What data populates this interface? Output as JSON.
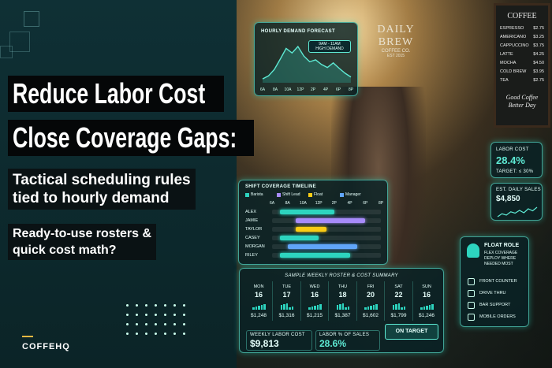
{
  "headline": {
    "line1": "Reduce Labor Cost",
    "line2": "Close Coverage Gaps:"
  },
  "subhead": [
    "Tactical scheduling rules",
    "tied to hourly demand"
  ],
  "question": [
    "Ready-to-use rosters &",
    "quick cost math?"
  ],
  "brand": "COFFEHQ",
  "store_sign": {
    "name": "DAILY BREW",
    "sub": "COFFEE CO.",
    "est": "EST 2015"
  },
  "menu_board": {
    "title": "COFFEE",
    "items": [
      [
        "ESPRESSO",
        "$2.75"
      ],
      [
        "AMERICANO",
        "$3.25"
      ],
      [
        "CAPPUCCINO",
        "$3.75"
      ],
      [
        "LATTE",
        "$4.25"
      ],
      [
        "MOCHA",
        "$4.50"
      ],
      [
        "COLD BREW",
        "$3.95"
      ],
      [
        "TEA",
        "$2.75"
      ]
    ],
    "tagline": [
      "Good Coffee",
      "Better Day"
    ]
  },
  "demand_forecast": {
    "title": "HOURLY DEMAND FORECAST",
    "callout": [
      "9AM - 11AM",
      "HIGH DEMAND"
    ],
    "hours": [
      "6A",
      "8A",
      "10A",
      "12P",
      "2P",
      "4P",
      "6P",
      "8P"
    ],
    "values": [
      10,
      18,
      35,
      62,
      90,
      78,
      95,
      70,
      55,
      60,
      48,
      40,
      52,
      38,
      25,
      15
    ]
  },
  "labor_cost": {
    "label": "LABOR COST",
    "value": "28.4%",
    "target": "TARGET: ≤ 30%"
  },
  "daily_sales": {
    "label": "EST. DAILY SALES",
    "value": "$4,850",
    "trend": [
      30,
      45,
      38,
      55,
      48,
      62,
      50,
      70,
      60,
      78
    ]
  },
  "shift_timeline": {
    "title": "SHIFT COVERAGE TIMELINE",
    "legend": [
      {
        "name": "Barista",
        "color": "#2dd4bf"
      },
      {
        "name": "Shift Lead",
        "color": "#a78bfa"
      },
      {
        "name": "Float",
        "color": "#facc15"
      },
      {
        "name": "Manager",
        "color": "#60a5fa"
      }
    ],
    "hours": [
      "6A",
      "8A",
      "10A",
      "12P",
      "2P",
      "4P",
      "6P",
      "8P"
    ],
    "rows": [
      {
        "name": "ALEX",
        "shifts": [
          {
            "start": 7,
            "end": 14,
            "color": "#2dd4bf"
          }
        ]
      },
      {
        "name": "JAMIE",
        "shifts": [
          {
            "start": 9,
            "end": 18,
            "color": "#a78bfa"
          }
        ]
      },
      {
        "name": "TAYLOR",
        "shifts": [
          {
            "start": 9,
            "end": 13,
            "color": "#facc15"
          }
        ]
      },
      {
        "name": "CASEY",
        "shifts": [
          {
            "start": 7,
            "end": 12,
            "color": "#2dd4bf"
          }
        ]
      },
      {
        "name": "MORGAN",
        "shifts": [
          {
            "start": 8,
            "end": 17,
            "color": "#60a5fa"
          }
        ]
      },
      {
        "name": "RILEY",
        "shifts": [
          {
            "start": 7,
            "end": 16,
            "color": "#2dd4bf"
          }
        ]
      }
    ]
  },
  "float_role": {
    "title": "FLOAT ROLE",
    "lines": [
      "FLEX COVERAGE",
      "DEPLOY WHERE",
      "NEEDED MOST"
    ],
    "items": [
      "FRONT COUNTER",
      "DRIVE THRU",
      "BAR SUPPORT",
      "MOBILE ORDERS"
    ]
  },
  "weekly_summary": {
    "title": "SAMPLE WEEKLY ROSTER & COST SUMMARY",
    "days": [
      {
        "day": "MON",
        "staff": 16,
        "cost": "$1,248"
      },
      {
        "day": "TUE",
        "staff": 17,
        "cost": "$1,316"
      },
      {
        "day": "WED",
        "staff": 16,
        "cost": "$1,215"
      },
      {
        "day": "THU",
        "staff": 18,
        "cost": "$1,387"
      },
      {
        "day": "FRI",
        "staff": 20,
        "cost": "$1,602"
      },
      {
        "day": "SAT",
        "staff": 22,
        "cost": "$1,799"
      },
      {
        "day": "SUN",
        "staff": 16,
        "cost": "$1,246"
      }
    ],
    "weekly_label": "WEEKLY LABOR COST",
    "weekly_value": "$9,813",
    "pct_label": "LABOR % OF SALES",
    "pct_value": "28.6%",
    "status": "ON TARGET"
  }
}
